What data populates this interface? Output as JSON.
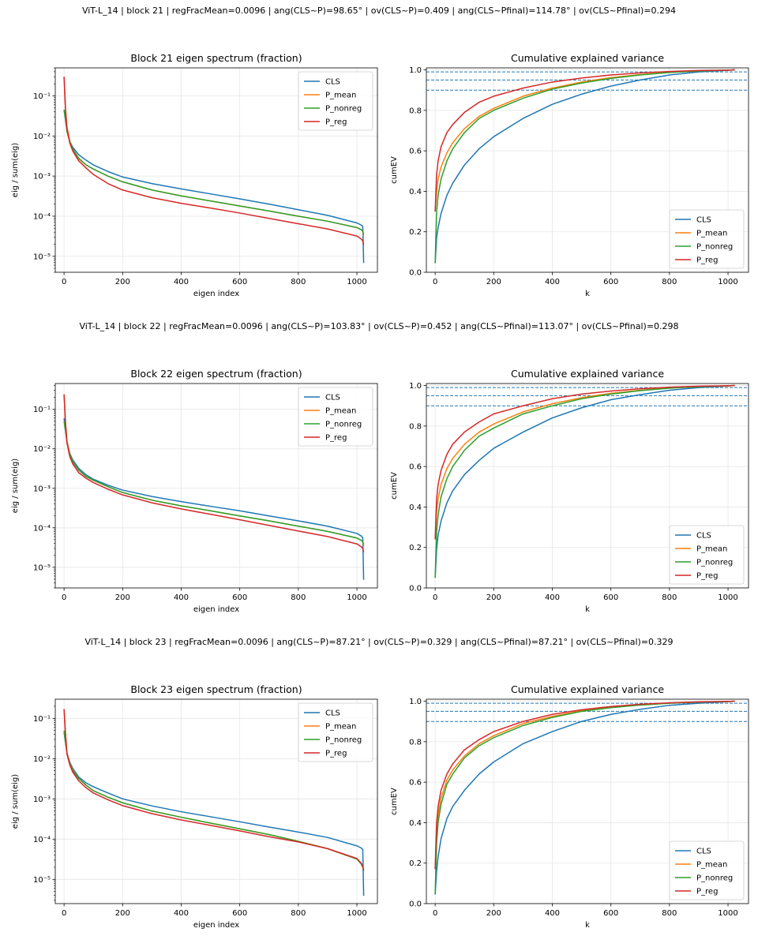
{
  "figure": {
    "colors": {
      "CLS": "#1f77b4",
      "P_mean": "#ff7f0e",
      "P_nonreg": "#2ca02c",
      "P_reg": "#d62728",
      "ref": "#1f77b4"
    },
    "legend_labels": [
      "CLS",
      "P_mean",
      "P_nonreg",
      "P_reg"
    ]
  },
  "chart_data": [
    {
      "suptitle": "ViT-L_14 | block 21 | regFracMean=0.0096 | ang(CLS~P)=98.65° | ov(CLS~P)=0.409 | ang(CLS~Pfinal)=114.78° | ov(CLS~Pfinal)=0.294",
      "spectrum": {
        "type": "line",
        "title": "Block 21 eigen spectrum (fraction)",
        "xlabel": "eigen index",
        "ylabel": "eig / sum(eig)",
        "yscale": "log",
        "xlim": [
          -30,
          1070
        ],
        "ylim": [
          4e-06,
          0.5
        ],
        "xticks": [
          0,
          200,
          400,
          600,
          800,
          1000
        ],
        "yticks": [
          1e-05,
          0.0001,
          0.001,
          0.01,
          0.1
        ],
        "ytick_labels": [
          "10⁻⁵",
          "10⁻⁴",
          "10⁻³",
          "10⁻²",
          "10⁻¹"
        ],
        "legend": "top-right",
        "x": [
          0,
          5,
          10,
          20,
          30,
          50,
          75,
          100,
          150,
          200,
          300,
          400,
          500,
          600,
          700,
          800,
          900,
          1000,
          1015,
          1020,
          1023
        ],
        "series": [
          {
            "name": "CLS",
            "values": [
              0.045,
              0.025,
              0.013,
              0.0072,
              0.0052,
              0.0034,
              0.0025,
              0.0019,
              0.0013,
              0.00095,
              0.00065,
              0.00048,
              0.00036,
              0.00027,
              0.0002,
              0.000145,
              0.000105,
              6.8e-05,
              6e-05,
              5.5e-05,
              6.8e-06
            ]
          },
          {
            "name": "P_mean",
            "values": [
              0.3,
              0.045,
              0.017,
              0.0073,
              0.0046,
              0.0027,
              0.0019,
              0.0015,
              0.001,
              0.00072,
              0.00045,
              0.00032,
              0.00024,
              0.00018,
              0.000135,
              0.0001,
              7.5e-05,
              5.2e-05,
              4.6e-05,
              4.2e-05,
              3.1e-05
            ]
          },
          {
            "name": "P_nonreg",
            "values": [
              0.045,
              0.026,
              0.013,
              0.007,
              0.0047,
              0.0028,
              0.0019,
              0.0015,
              0.001,
              0.00072,
              0.00045,
              0.00032,
              0.00024,
              0.00018,
              0.000135,
              0.0001,
              7.5e-05,
              5.2e-05,
              4.6e-05,
              4.2e-05,
              3.5e-05
            ]
          },
          {
            "name": "P_reg",
            "values": [
              0.3,
              0.045,
              0.015,
              0.0065,
              0.0042,
              0.0024,
              0.0016,
              0.0011,
              0.00065,
              0.00045,
              0.00029,
              0.00021,
              0.00016,
              0.00012,
              8.8e-05,
              6.5e-05,
              4.8e-05,
              3.2e-05,
              2.7e-05,
              2.4e-05,
              1.9e-05
            ]
          }
        ]
      },
      "cumev": {
        "type": "line",
        "title": "Cumulative explained variance",
        "xlabel": "k",
        "ylabel": "cumEV",
        "xlim": [
          -30,
          1070
        ],
        "ylim": [
          0,
          1.01
        ],
        "xticks": [
          0,
          200,
          400,
          600,
          800,
          1000
        ],
        "yticks": [
          0,
          0.2,
          0.4,
          0.6,
          0.8,
          1.0
        ],
        "ytick_labels": [
          "0.0",
          "0.2",
          "0.4",
          "0.6",
          "0.8",
          "1.0"
        ],
        "reference_lines": [
          0.9,
          0.95,
          0.99
        ],
        "legend": "bottom-right",
        "x": [
          0,
          5,
          10,
          20,
          40,
          60,
          100,
          150,
          200,
          300,
          400,
          500,
          600,
          700,
          800,
          900,
          1000,
          1023
        ],
        "series": [
          {
            "name": "CLS",
            "values": [
              0.045,
              0.17,
              0.22,
              0.29,
              0.38,
              0.44,
              0.53,
              0.61,
              0.67,
              0.76,
              0.83,
              0.88,
              0.92,
              0.95,
              0.975,
              0.99,
              0.998,
              1.0
            ]
          },
          {
            "name": "P_mean",
            "values": [
              0.3,
              0.4,
              0.46,
              0.52,
              0.59,
              0.64,
              0.71,
              0.77,
              0.81,
              0.87,
              0.91,
              0.94,
              0.962,
              0.977,
              0.988,
              0.995,
              0.999,
              1.0
            ]
          },
          {
            "name": "P_nonreg",
            "values": [
              0.045,
              0.3,
              0.38,
              0.46,
              0.55,
              0.61,
              0.69,
              0.76,
              0.8,
              0.86,
              0.905,
              0.935,
              0.958,
              0.975,
              0.987,
              0.995,
              0.999,
              1.0
            ]
          },
          {
            "name": "P_reg",
            "values": [
              0.3,
              0.48,
              0.55,
              0.62,
              0.69,
              0.73,
              0.79,
              0.84,
              0.87,
              0.91,
              0.94,
              0.96,
              0.975,
              0.985,
              0.992,
              0.997,
              0.999,
              1.0
            ]
          }
        ]
      }
    },
    {
      "suptitle": "ViT-L_14 | block 22 | regFracMean=0.0096 | ang(CLS~P)=103.83° | ov(CLS~P)=0.452 | ang(CLS~Pfinal)=113.07° | ov(CLS~Pfinal)=0.298",
      "spectrum": {
        "type": "line",
        "title": "Block 22 eigen spectrum (fraction)",
        "xlabel": "eigen index",
        "ylabel": "eig / sum(eig)",
        "yscale": "log",
        "xlim": [
          -30,
          1070
        ],
        "ylim": [
          3e-06,
          0.45
        ],
        "xticks": [
          0,
          200,
          400,
          600,
          800,
          1000
        ],
        "yticks": [
          1e-05,
          0.0001,
          0.001,
          0.01,
          0.1
        ],
        "ytick_labels": [
          "10⁻⁵",
          "10⁻⁴",
          "10⁻³",
          "10⁻²",
          "10⁻¹"
        ],
        "legend": "top-right",
        "x": [
          0,
          5,
          10,
          20,
          30,
          50,
          75,
          100,
          150,
          200,
          300,
          400,
          500,
          600,
          700,
          800,
          900,
          1000,
          1015,
          1020,
          1023
        ],
        "series": [
          {
            "name": "CLS",
            "values": [
              0.06,
              0.03,
              0.015,
              0.0075,
              0.0052,
              0.0032,
              0.0022,
              0.0017,
              0.0012,
              0.0009,
              0.00062,
              0.00046,
              0.00035,
              0.00027,
              0.0002,
              0.00015,
              0.00011,
              7.2e-05,
              6.2e-05,
              5.6e-05,
              4.8e-06
            ]
          },
          {
            "name": "P_mean",
            "values": [
              0.24,
              0.045,
              0.016,
              0.0072,
              0.0047,
              0.0029,
              0.002,
              0.0016,
              0.0011,
              0.00078,
              0.0005,
              0.00036,
              0.00027,
              0.0002,
              0.00015,
              0.00011,
              8.1e-05,
              5.5e-05,
              4.8e-05,
              4.4e-05,
              3.4e-05
            ]
          },
          {
            "name": "P_nonreg",
            "values": [
              0.05,
              0.028,
              0.014,
              0.007,
              0.0047,
              0.0029,
              0.002,
              0.0016,
              0.0011,
              0.00078,
              0.0005,
              0.00036,
              0.00027,
              0.0002,
              0.00015,
              0.00011,
              8.1e-05,
              5.5e-05,
              4.8e-05,
              4.4e-05,
              3.8e-05
            ]
          },
          {
            "name": "P_reg",
            "values": [
              0.24,
              0.045,
              0.014,
              0.0062,
              0.0041,
              0.0025,
              0.0018,
              0.0014,
              0.00095,
              0.00068,
              0.00043,
              0.0003,
              0.00022,
              0.00016,
              0.000115,
              8.3e-05,
              6e-05,
              3.9e-05,
              3.3e-05,
              3e-05,
              2.4e-05
            ]
          }
        ]
      },
      "cumev": {
        "type": "line",
        "title": "Cumulative explained variance",
        "xlabel": "k",
        "ylabel": "cumEV",
        "xlim": [
          -30,
          1070
        ],
        "ylim": [
          0,
          1.01
        ],
        "xticks": [
          0,
          200,
          400,
          600,
          800,
          1000
        ],
        "yticks": [
          0,
          0.2,
          0.4,
          0.6,
          0.8,
          1.0
        ],
        "ytick_labels": [
          "0.0",
          "0.2",
          "0.4",
          "0.6",
          "0.8",
          "1.0"
        ],
        "reference_lines": [
          0.9,
          0.95,
          0.99
        ],
        "legend": "bottom-right",
        "x": [
          0,
          5,
          10,
          20,
          40,
          60,
          100,
          150,
          200,
          300,
          400,
          500,
          600,
          700,
          800,
          900,
          1000,
          1023
        ],
        "series": [
          {
            "name": "CLS",
            "values": [
              0.05,
              0.19,
              0.26,
              0.33,
              0.42,
              0.48,
              0.56,
              0.63,
              0.69,
              0.77,
              0.84,
              0.89,
              0.93,
              0.955,
              0.977,
              0.99,
              0.998,
              1.0
            ]
          },
          {
            "name": "P_mean",
            "values": [
              0.24,
              0.38,
              0.44,
              0.51,
              0.59,
              0.64,
              0.71,
              0.77,
              0.81,
              0.87,
              0.91,
              0.94,
              0.962,
              0.977,
              0.988,
              0.995,
              0.999,
              1.0
            ]
          },
          {
            "name": "P_nonreg",
            "values": [
              0.05,
              0.28,
              0.36,
              0.45,
              0.54,
              0.6,
              0.68,
              0.75,
              0.79,
              0.86,
              0.9,
              0.935,
              0.958,
              0.975,
              0.987,
              0.995,
              0.999,
              1.0
            ]
          },
          {
            "name": "P_reg",
            "values": [
              0.24,
              0.44,
              0.51,
              0.58,
              0.66,
              0.71,
              0.77,
              0.82,
              0.86,
              0.9,
              0.935,
              0.958,
              0.973,
              0.984,
              0.992,
              0.997,
              0.999,
              1.0
            ]
          }
        ]
      }
    },
    {
      "suptitle": "ViT-L_14 | block 23 | regFracMean=0.0096 | ang(CLS~P)=87.21° | ov(CLS~P)=0.329 | ang(CLS~Pfinal)=87.21° | ov(CLS~Pfinal)=0.329",
      "spectrum": {
        "type": "line",
        "title": "Block 23 eigen spectrum (fraction)",
        "xlabel": "eigen index",
        "ylabel": "eig / sum(eig)",
        "yscale": "log",
        "xlim": [
          -30,
          1070
        ],
        "ylim": [
          2.5e-06,
          0.3
        ],
        "xticks": [
          0,
          200,
          400,
          600,
          800,
          1000
        ],
        "yticks": [
          1e-05,
          0.0001,
          0.001,
          0.01,
          0.1
        ],
        "ytick_labels": [
          "10⁻⁵",
          "10⁻⁴",
          "10⁻³",
          "10⁻²",
          "10⁻¹"
        ],
        "legend": "top-right",
        "x": [
          0,
          5,
          10,
          20,
          30,
          50,
          75,
          100,
          150,
          200,
          300,
          400,
          500,
          600,
          700,
          800,
          900,
          1000,
          1015,
          1020,
          1023
        ],
        "series": [
          {
            "name": "CLS",
            "values": [
              0.045,
              0.025,
              0.014,
              0.008,
              0.0057,
              0.0035,
              0.0025,
              0.002,
              0.0014,
              0.001,
              0.00067,
              0.00048,
              0.00036,
              0.00027,
              0.0002,
              0.00015,
              0.00011,
              6.8e-05,
              6e-05,
              5.5e-05,
              3.9e-06
            ]
          },
          {
            "name": "P_mean",
            "values": [
              0.17,
              0.04,
              0.014,
              0.0075,
              0.0052,
              0.0032,
              0.0022,
              0.0016,
              0.0011,
              0.0008,
              0.0005,
              0.00035,
              0.00025,
              0.00018,
              0.00013,
              8.8e-05,
              5.8e-05,
              3.2e-05,
              2.4e-05,
              2e-05,
              1.7e-05
            ]
          },
          {
            "name": "P_nonreg",
            "values": [
              0.05,
              0.026,
              0.013,
              0.0072,
              0.005,
              0.0032,
              0.0022,
              0.0016,
              0.0011,
              0.0008,
              0.0005,
              0.00035,
              0.00025,
              0.00018,
              0.00013,
              8.8e-05,
              5.8e-05,
              3.2e-05,
              2.4e-05,
              2e-05,
              1.6e-05
            ]
          },
          {
            "name": "P_reg",
            "values": [
              0.17,
              0.04,
              0.013,
              0.0068,
              0.0046,
              0.0028,
              0.0019,
              0.0014,
              0.00095,
              0.00068,
              0.00043,
              0.0003,
              0.00022,
              0.00016,
              0.000115,
              8.5e-05,
              5.8e-05,
              3.3e-05,
              2.5e-05,
              2.1e-05,
              1.7e-05
            ]
          }
        ]
      },
      "cumev": {
        "type": "line",
        "title": "Cumulative explained variance",
        "xlabel": "k",
        "ylabel": "cumEV",
        "xlim": [
          -30,
          1070
        ],
        "ylim": [
          0,
          1.01
        ],
        "xticks": [
          0,
          200,
          400,
          600,
          800,
          1000
        ],
        "yticks": [
          0,
          0.2,
          0.4,
          0.6,
          0.8,
          1.0
        ],
        "ytick_labels": [
          "0.0",
          "0.2",
          "0.4",
          "0.6",
          "0.8",
          "1.0"
        ],
        "reference_lines": [
          0.9,
          0.95,
          0.99
        ],
        "legend": "bottom-right",
        "x": [
          0,
          5,
          10,
          20,
          40,
          60,
          100,
          150,
          200,
          300,
          400,
          500,
          600,
          700,
          800,
          900,
          1000,
          1023
        ],
        "series": [
          {
            "name": "CLS",
            "values": [
              0.045,
              0.16,
              0.23,
              0.32,
              0.42,
              0.48,
              0.56,
              0.64,
              0.7,
              0.79,
              0.85,
              0.9,
              0.935,
              0.96,
              0.98,
              0.99,
              0.998,
              1.0
            ]
          },
          {
            "name": "P_mean",
            "values": [
              0.17,
              0.36,
              0.44,
              0.52,
              0.61,
              0.66,
              0.73,
              0.79,
              0.83,
              0.89,
              0.925,
              0.953,
              0.97,
              0.983,
              0.991,
              0.996,
              0.999,
              1.0
            ]
          },
          {
            "name": "P_nonreg",
            "values": [
              0.05,
              0.3,
              0.4,
              0.49,
              0.59,
              0.64,
              0.72,
              0.78,
              0.82,
              0.88,
              0.92,
              0.95,
              0.968,
              0.981,
              0.99,
              0.996,
              0.999,
              1.0
            ]
          },
          {
            "name": "P_reg",
            "values": [
              0.17,
              0.4,
              0.48,
              0.56,
              0.64,
              0.69,
              0.76,
              0.81,
              0.85,
              0.9,
              0.935,
              0.958,
              0.974,
              0.985,
              0.992,
              0.997,
              0.999,
              1.0
            ]
          }
        ]
      }
    }
  ]
}
